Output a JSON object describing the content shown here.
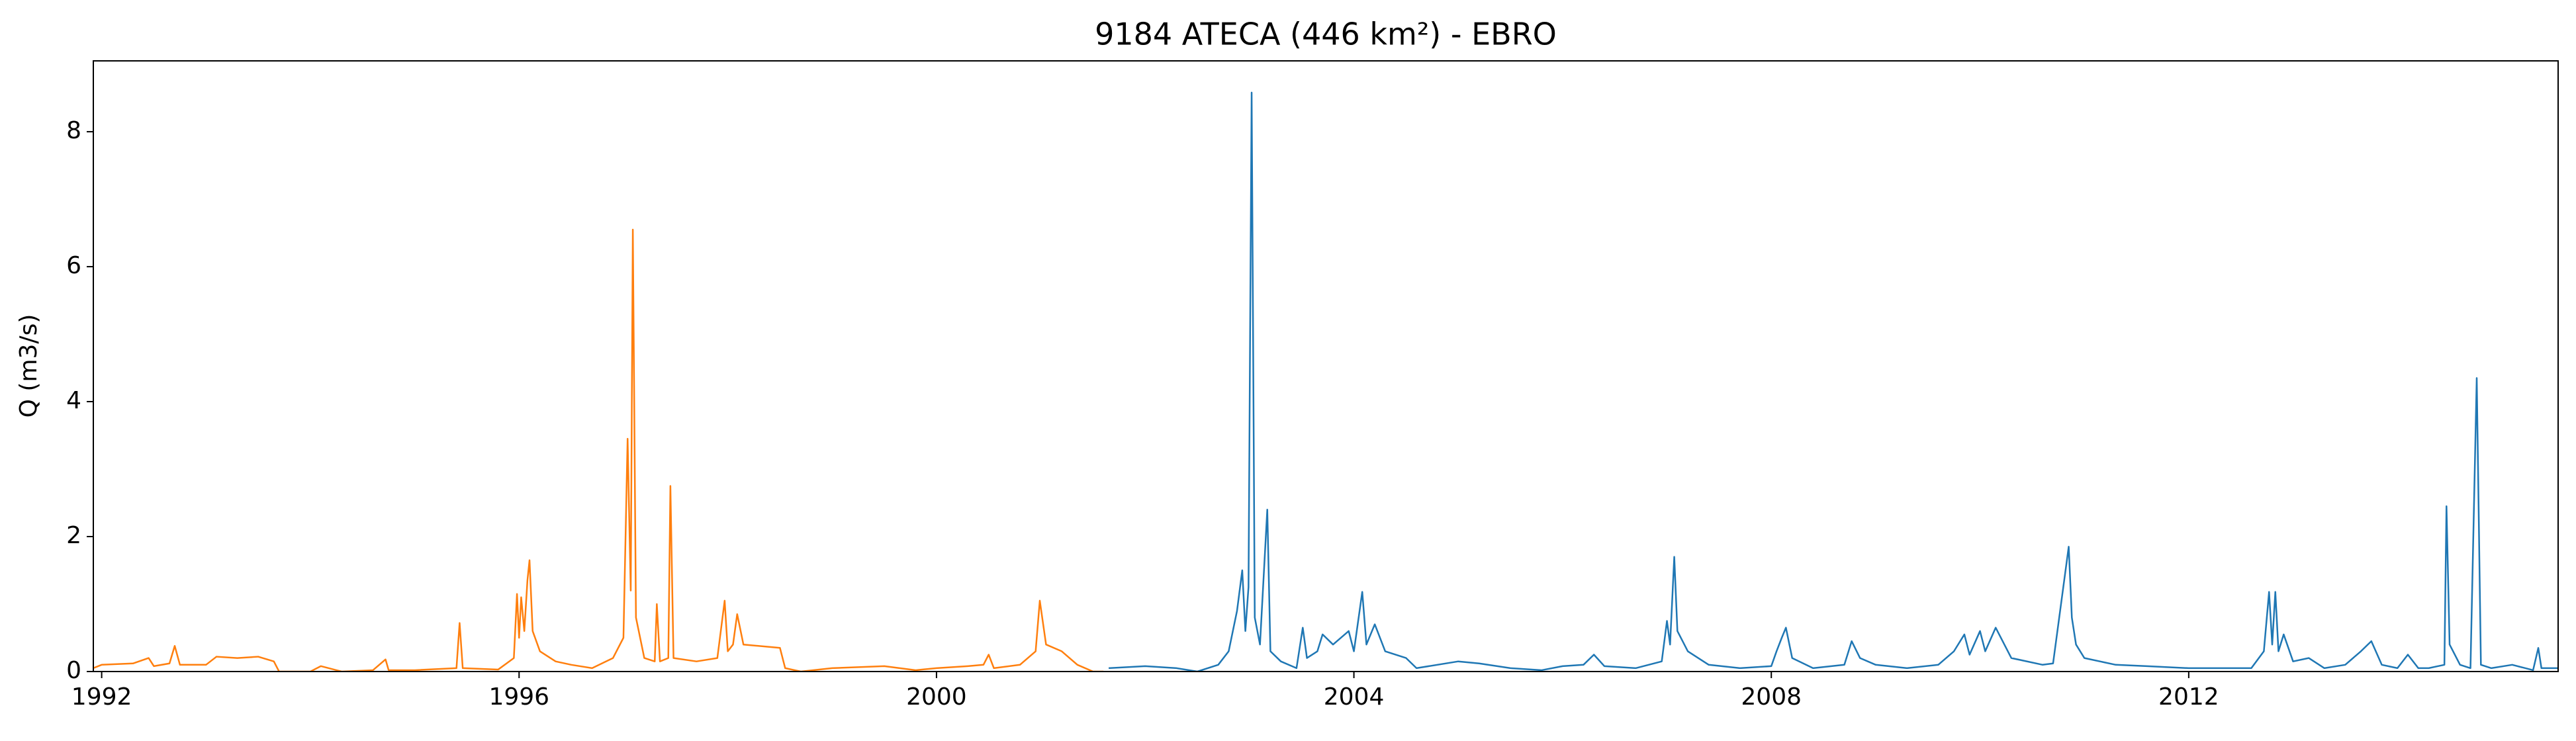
{
  "chart_data": {
    "type": "line",
    "title": "9184 ATECA (446 km²) - EBRO",
    "ylabel": "Q (m3/s)",
    "xlim": [
      1991.92,
      2015.54
    ],
    "ylim": [
      0,
      9.05
    ],
    "xticks": [
      1992,
      1996,
      2000,
      2004,
      2008,
      2012
    ],
    "yticks": [
      0,
      2,
      4,
      6,
      8
    ],
    "grid": false,
    "series": [
      {
        "color": "#ff7f0e",
        "x": [
          1991.92,
          1992.0,
          1992.3,
          1992.45,
          1992.5,
          1992.65,
          1992.7,
          1992.75,
          1993.0,
          1993.1,
          1993.3,
          1993.5,
          1993.65,
          1993.7,
          1994.0,
          1994.1,
          1994.3,
          1994.6,
          1994.72,
          1994.75,
          1995.0,
          1995.4,
          1995.43,
          1995.46,
          1995.8,
          1995.95,
          1995.98,
          1996.0,
          1996.02,
          1996.05,
          1996.08,
          1996.1,
          1996.13,
          1996.2,
          1996.35,
          1996.5,
          1996.7,
          1996.9,
          1997.0,
          1997.04,
          1997.07,
          1997.09,
          1997.12,
          1997.2,
          1997.3,
          1997.32,
          1997.35,
          1997.43,
          1997.45,
          1997.48,
          1997.7,
          1997.9,
          1997.97,
          1998.0,
          1998.05,
          1998.09,
          1998.15,
          1998.5,
          1998.55,
          1998.7,
          1999.0,
          1999.5,
          1999.8,
          2000.0,
          2000.3,
          2000.45,
          2000.5,
          2000.55,
          2000.8,
          2000.95,
          2000.99,
          2001.05,
          2001.2,
          2001.35,
          2001.5,
          2001.6
        ],
        "values": [
          0.05,
          0.1,
          0.12,
          0.2,
          0.08,
          0.12,
          0.38,
          0.1,
          0.1,
          0.22,
          0.2,
          0.22,
          0.15,
          0.0,
          0.0,
          0.08,
          0.0,
          0.02,
          0.18,
          0.02,
          0.02,
          0.05,
          0.72,
          0.05,
          0.03,
          0.2,
          1.15,
          0.5,
          1.1,
          0.6,
          1.35,
          1.65,
          0.6,
          0.3,
          0.15,
          0.1,
          0.05,
          0.2,
          0.5,
          3.45,
          1.2,
          6.55,
          0.8,
          0.2,
          0.15,
          1.0,
          0.15,
          0.2,
          2.75,
          0.2,
          0.15,
          0.2,
          1.05,
          0.3,
          0.4,
          0.85,
          0.4,
          0.35,
          0.05,
          0.0,
          0.05,
          0.08,
          0.02,
          0.05,
          0.08,
          0.1,
          0.25,
          0.05,
          0.1,
          0.3,
          1.05,
          0.4,
          0.3,
          0.1,
          0.0,
          0.0
        ]
      },
      {
        "color": "#1f77b4",
        "x": [
          2001.65,
          2002.0,
          2002.3,
          2002.5,
          2002.7,
          2002.8,
          2002.88,
          2002.93,
          2002.96,
          2002.99,
          2003.02,
          2003.05,
          2003.1,
          2003.17,
          2003.2,
          2003.3,
          2003.45,
          2003.51,
          2003.55,
          2003.65,
          2003.7,
          2003.8,
          2003.95,
          2004.0,
          2004.08,
          2004.12,
          2004.2,
          2004.3,
          2004.5,
          2004.6,
          2005.0,
          2005.2,
          2005.5,
          2005.8,
          2006.0,
          2006.2,
          2006.3,
          2006.4,
          2006.7,
          2006.95,
          2007.0,
          2007.03,
          2007.07,
          2007.1,
          2007.2,
          2007.4,
          2007.7,
          2008.0,
          2008.05,
          2008.1,
          2008.14,
          2008.2,
          2008.4,
          2008.7,
          2008.77,
          2008.85,
          2009.0,
          2009.3,
          2009.6,
          2009.75,
          2009.85,
          2009.9,
          2010.0,
          2010.05,
          2010.15,
          2010.3,
          2010.6,
          2010.7,
          2010.85,
          2010.88,
          2010.92,
          2011.0,
          2011.3,
          2011.6,
          2012.0,
          2012.3,
          2012.6,
          2012.72,
          2012.77,
          2012.8,
          2012.83,
          2012.86,
          2012.91,
          2013.0,
          2013.15,
          2013.3,
          2013.5,
          2013.65,
          2013.75,
          2013.85,
          2014.0,
          2014.1,
          2014.2,
          2014.3,
          2014.45,
          2014.47,
          2014.5,
          2014.6,
          2014.7,
          2014.76,
          2014.8,
          2014.9,
          2015.1,
          2015.3,
          2015.35,
          2015.38,
          2015.54
        ],
        "values": [
          0.05,
          0.08,
          0.05,
          0.0,
          0.1,
          0.3,
          0.9,
          1.5,
          0.6,
          1.25,
          8.58,
          0.8,
          0.4,
          2.4,
          0.3,
          0.15,
          0.05,
          0.65,
          0.2,
          0.3,
          0.55,
          0.4,
          0.6,
          0.3,
          1.18,
          0.4,
          0.7,
          0.3,
          0.2,
          0.05,
          0.15,
          0.12,
          0.05,
          0.02,
          0.08,
          0.1,
          0.25,
          0.08,
          0.05,
          0.15,
          0.75,
          0.4,
          1.7,
          0.6,
          0.3,
          0.1,
          0.05,
          0.08,
          0.3,
          0.5,
          0.65,
          0.2,
          0.05,
          0.1,
          0.45,
          0.2,
          0.1,
          0.05,
          0.1,
          0.3,
          0.55,
          0.25,
          0.6,
          0.3,
          0.65,
          0.2,
          0.1,
          0.12,
          1.85,
          0.8,
          0.4,
          0.2,
          0.1,
          0.08,
          0.05,
          0.05,
          0.05,
          0.3,
          1.18,
          0.4,
          1.18,
          0.3,
          0.55,
          0.15,
          0.2,
          0.05,
          0.1,
          0.3,
          0.45,
          0.1,
          0.05,
          0.25,
          0.05,
          0.05,
          0.1,
          2.45,
          0.4,
          0.1,
          0.05,
          4.35,
          0.1,
          0.05,
          0.1,
          0.02,
          0.35,
          0.05,
          0.05
        ]
      }
    ]
  }
}
